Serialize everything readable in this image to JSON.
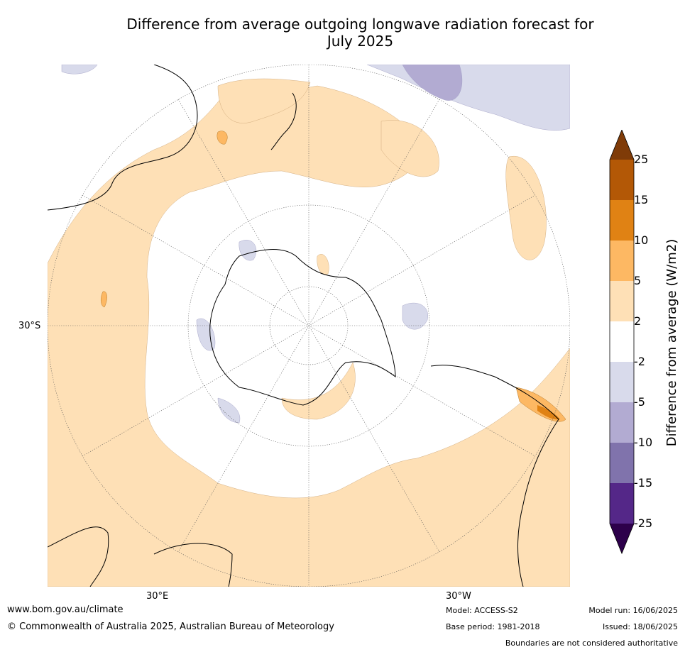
{
  "title_line1": "Difference from average outgoing longwave radiation forecast for",
  "title_line2": "July 2025",
  "map": {
    "projection": "south-polar-stereographic",
    "lat_label": "30°S",
    "lon_label_east": "30°E",
    "lon_label_west": "30°W"
  },
  "colorbar": {
    "label": "Difference from average (W/m2)",
    "ticks": [
      "25",
      "15",
      "10",
      "5",
      "2",
      "-2",
      "-5",
      "-10",
      "-15",
      "-25"
    ],
    "bins": [
      {
        "range": ">25",
        "color": "#7f3b08"
      },
      {
        "range": "15 to 25",
        "color": "#b35806"
      },
      {
        "range": "10 to 15",
        "color": "#e08214"
      },
      {
        "range": "5 to 10",
        "color": "#fdb863"
      },
      {
        "range": "2 to 5",
        "color": "#fee0b6"
      },
      {
        "range": "-2 to 2",
        "color": "#ffffff"
      },
      {
        "range": "-5 to -2",
        "color": "#d8daeb"
      },
      {
        "range": "-10 to -5",
        "color": "#b2abd2"
      },
      {
        "range": "-15 to -10",
        "color": "#8073ac"
      },
      {
        "range": "-25 to -15",
        "color": "#542788"
      },
      {
        "range": "<-25",
        "color": "#2d004b"
      }
    ]
  },
  "footer": {
    "website": "www.bom.gov.au/climate",
    "copyright": "© Commonwealth of Australia 2025, Australian Bureau of Meteorology",
    "model": "Model: ACCESS-S2",
    "base_period": "Base period: 1981-2018",
    "model_run": "Model run: 16/06/2025",
    "issued": "Issued: 18/06/2025",
    "disclaimer": "Boundaries are not considered authoritative"
  }
}
